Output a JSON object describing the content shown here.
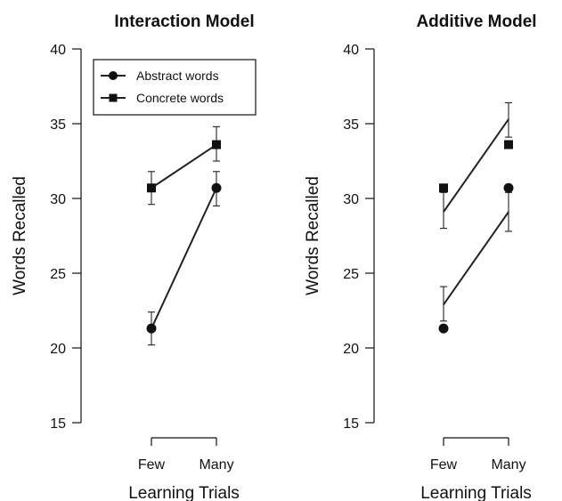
{
  "chart_data": [
    {
      "type": "line",
      "title": "Interaction Model",
      "xlabel": "Learning Trials",
      "ylabel": "Words Recalled",
      "categories": [
        "Few",
        "Many"
      ],
      "ylim": [
        15,
        40
      ],
      "yticks": [
        15,
        20,
        25,
        30,
        35,
        40
      ],
      "legend": "top-left",
      "series": [
        {
          "name": "Abstract words",
          "marker": "circle",
          "values": [
            21.3,
            30.7
          ],
          "error": [
            [
              20.2,
              22.4
            ],
            [
              29.5,
              31.8
            ]
          ],
          "line": [
            21.3,
            30.7
          ]
        },
        {
          "name": "Concrete words",
          "marker": "square",
          "values": [
            30.7,
            33.6
          ],
          "error": [
            [
              29.6,
              31.8
            ],
            [
              32.5,
              34.8
            ]
          ],
          "line": [
            30.7,
            33.6
          ]
        }
      ]
    },
    {
      "type": "line",
      "title": "Additive Model",
      "xlabel": "Learning Trials",
      "ylabel": "Words Recalled",
      "categories": [
        "Few",
        "Many"
      ],
      "ylim": [
        15,
        40
      ],
      "yticks": [
        15,
        20,
        25,
        30,
        35,
        40
      ],
      "series": [
        {
          "name": "Abstract words",
          "marker": "circle",
          "values": [
            21.3,
            30.7
          ],
          "line": [
            22.9,
            29.1
          ],
          "error": [
            [
              21.8,
              24.1
            ],
            [
              27.8,
              30.4
            ]
          ]
        },
        {
          "name": "Concrete words",
          "marker": "square",
          "values": [
            30.7,
            33.6
          ],
          "line": [
            29.1,
            35.3
          ],
          "error": [
            [
              28.0,
              30.4
            ],
            [
              34.1,
              36.4
            ]
          ]
        }
      ]
    }
  ]
}
